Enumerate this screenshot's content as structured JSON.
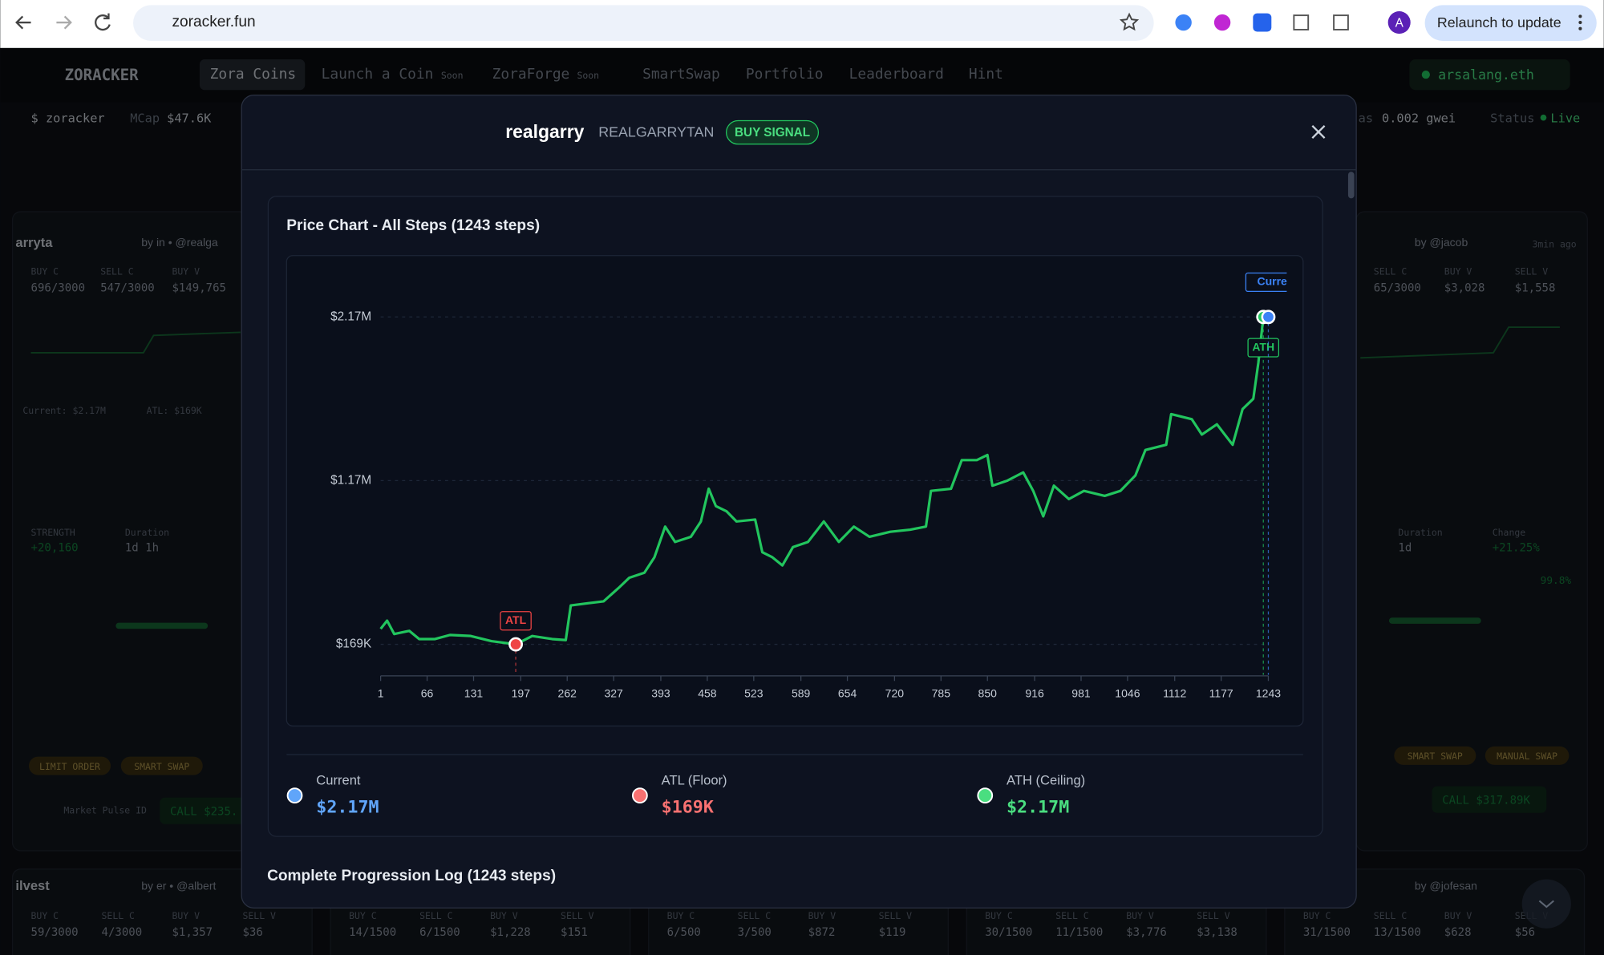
{
  "browser": {
    "url": "zoracker.fun",
    "avatar": "A",
    "relaunch": "Relaunch to update"
  },
  "app": {
    "logo": "ZORACKER",
    "nav": [
      "Zora Coins",
      "Launch a Coin",
      "Soon",
      "ZoraForge",
      "Soon",
      "SmartSwap",
      "Portfolio",
      "Leaderboard",
      "Hint"
    ],
    "wallet": "arsalang.eth",
    "ticker": {
      "symbol": "$ zoracker",
      "mcap_label": "MCap",
      "mcap": "$47.6K",
      "gas_label": "as",
      "gas": "0.002 gwei",
      "status_label": "Status",
      "status": "Live"
    }
  },
  "cards": {
    "left": {
      "name": "arryta",
      "by": "by in • @realga",
      "labels": [
        "BUY C",
        "SELL C",
        "BUY V"
      ],
      "values": [
        "696/3000",
        "547/3000",
        "$149,765"
      ],
      "current": "Current: $2.17M",
      "atl": "ATL: $169K",
      "strength_label": "STRENGTH",
      "strength": "+20,160",
      "duration_label": "Duration",
      "duration": "1d 1h",
      "buttons": [
        "LIMIT ORDER",
        "SMART SWAP"
      ],
      "pulse": "Market Pulse ID",
      "call": "CALL $235."
    },
    "right": {
      "by": "by @jacob",
      "age": "3min ago",
      "labels": [
        "SELL C",
        "BUY V",
        "SELL V"
      ],
      "values": [
        "65/3000",
        "$3,028",
        "$1,558"
      ],
      "duration_label": "Duration",
      "duration": "1d",
      "change_label": "Change",
      "change": "+21.25%",
      "pct": "99.8%",
      "buttons": [
        "SMART SWAP",
        "MANUAL SWAP"
      ],
      "call": "CALL $317.89K"
    },
    "bottom": [
      {
        "name": "ilvest",
        "by": "by er • @albert",
        "values": [
          "59/3000",
          "4/3000",
          "$1,357",
          "$36"
        ]
      },
      {
        "values": [
          "14/1500",
          "6/1500",
          "$1,228",
          "$151"
        ]
      },
      {
        "values": [
          "6/500",
          "3/500",
          "$872",
          "$119"
        ]
      },
      {
        "values": [
          "30/1500",
          "11/1500",
          "$3,776",
          "$3,138"
        ]
      },
      {
        "by": "by @jofesan",
        "values": [
          "31/1500",
          "13/1500",
          "$628",
          "$56"
        ]
      }
    ],
    "bottom_labels": [
      "BUY C",
      "SELL C",
      "BUY V",
      "SELL V"
    ]
  },
  "modal": {
    "name": "realgarry",
    "handle": "REALGARRYTAN",
    "badge": "BUY SIGNAL",
    "stats": [
      {
        "label": "Current",
        "value": "$2.17M",
        "color": "#60a5fa"
      },
      {
        "label": "ATL (Floor)",
        "value": "$169K",
        "color": "#f87171"
      },
      {
        "label": "ATH (Ceiling)",
        "value": "$2.17M",
        "color": "#4ade80"
      }
    ],
    "log_title": "Complete Progression Log (1243 steps)"
  },
  "chart_data": {
    "type": "line",
    "title": "Price Chart - All Steps (1243 steps)",
    "color": "#22c55e",
    "x": [
      1,
      10,
      20,
      41,
      55,
      77,
      98,
      127,
      156,
      190,
      213,
      241,
      260,
      267,
      291,
      313,
      334,
      349,
      370,
      384,
      399,
      413,
      435,
      449,
      460,
      470,
      485,
      499,
      525,
      535,
      549,
      563,
      578,
      599,
      621,
      642,
      663,
      685,
      714,
      742,
      764,
      771,
      799,
      814,
      835,
      850,
      857,
      878,
      900,
      914,
      928,
      943,
      964,
      985,
      1014,
      1036,
      1057,
      1071,
      1100,
      1107,
      1136,
      1150,
      1171,
      1193,
      1207,
      1222,
      1229,
      1236,
      1243
    ],
    "values": [
      264000,
      314000,
      232000,
      251000,
      201000,
      201000,
      226000,
      220000,
      189000,
      169000,
      220000,
      201000,
      195000,
      407000,
      420000,
      432000,
      514000,
      576000,
      607000,
      701000,
      889000,
      795000,
      826000,
      920000,
      1120000,
      1014000,
      982000,
      920000,
      932000,
      732000,
      701000,
      651000,
      764000,
      795000,
      920000,
      795000,
      889000,
      826000,
      857000,
      870000,
      889000,
      1107000,
      1120000,
      1295000,
      1295000,
      1326000,
      1139000,
      1170000,
      1220000,
      1107000,
      951000,
      1139000,
      1057000,
      1107000,
      1076000,
      1107000,
      1201000,
      1357000,
      1389000,
      1576000,
      1545000,
      1451000,
      1514000,
      1389000,
      1607000,
      1670000,
      1889000,
      2170000,
      2170000
    ],
    "xlim": [
      1,
      1243
    ],
    "ylim": [
      -17500,
      2295000
    ],
    "xticks": [
      1,
      66,
      131,
      197,
      262,
      327,
      393,
      458,
      523,
      589,
      654,
      720,
      785,
      850,
      916,
      981,
      1046,
      1112,
      1177,
      1243
    ],
    "yticks": [
      {
        "value": 169000,
        "label": "$169K"
      },
      {
        "value": 1170000,
        "label": "$1.17M"
      },
      {
        "value": 2170000,
        "label": "$2.17M"
      }
    ],
    "grid": true,
    "annotations": [
      {
        "text": "ATL",
        "x": 190,
        "y": 169000,
        "color": "#ef4444"
      },
      {
        "text": "ATH",
        "x": 1236,
        "y": 2170000,
        "color": "#22c55e"
      },
      {
        "text": "Current",
        "x": 1243,
        "y": 2170000,
        "color": "#3b82f6"
      }
    ]
  }
}
